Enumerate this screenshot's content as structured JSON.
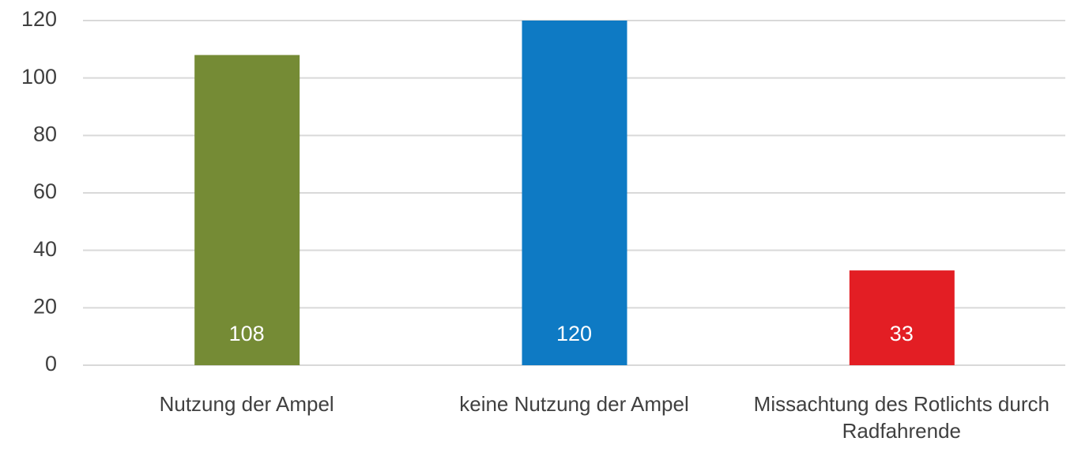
{
  "chart_data": {
    "type": "bar",
    "categories": [
      "Nutzung der Ampel",
      "keine Nutzung der Ampel",
      "Missachtung des Rotlichts durch Radfahrende"
    ],
    "values": [
      108,
      120,
      33
    ],
    "colors": [
      "#758b35",
      "#0e7ac4",
      "#e31e24"
    ],
    "ylim": [
      0,
      120
    ],
    "yticks": [
      0,
      20,
      40,
      60,
      80,
      100,
      120
    ],
    "grid": true,
    "data_labels": true
  }
}
